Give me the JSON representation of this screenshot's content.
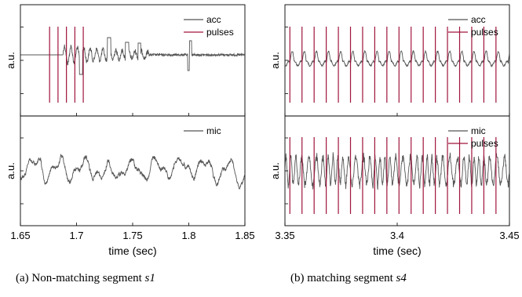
{
  "panels": [
    {
      "id": "a",
      "caption_prefix": "(a) Non-matching segment",
      "caption_segment": "s1",
      "xlabel": "time (sec)",
      "xlim": [
        1.65,
        1.85
      ],
      "xticks": [
        "1.65",
        "1.7",
        "1.75",
        "1.8",
        "1.85"
      ]
    },
    {
      "id": "b",
      "caption_prefix": "(b) matching segment",
      "caption_segment": "s4",
      "xlabel": "time (sec)",
      "xlim": [
        3.35,
        3.45
      ],
      "xticks": [
        "3.35",
        "3.4",
        "3.45"
      ]
    }
  ],
  "chart_data": [
    {
      "type": "line",
      "panel": "a-top",
      "xlim": [
        1.65,
        1.85
      ],
      "ylabel": "a.u.",
      "legend_position": "top-right",
      "series": [
        {
          "name": "acc",
          "color": "#555555",
          "style": "signal"
        },
        {
          "name": "pulses",
          "color": "#a0143c",
          "style": "pulses",
          "x": [
            1.676,
            1.6835,
            1.691,
            1.6985,
            1.706
          ]
        }
      ]
    },
    {
      "type": "line",
      "panel": "a-bottom",
      "xlim": [
        1.65,
        1.85
      ],
      "ylabel": "a.u.",
      "legend_position": "top-right",
      "series": [
        {
          "name": "mic",
          "color": "#555555",
          "style": "signal"
        }
      ]
    },
    {
      "type": "line",
      "panel": "b-top",
      "xlim": [
        3.35,
        3.45
      ],
      "ylabel": "a.u.",
      "legend_position": "top-right",
      "series": [
        {
          "name": "acc",
          "color": "#555555",
          "style": "signal"
        },
        {
          "name": "pulses",
          "color": "#a0143c",
          "style": "pulses",
          "x": [
            3.3522,
            3.3576,
            3.363,
            3.3684,
            3.3738,
            3.3792,
            3.3846,
            3.39,
            3.3954,
            3.4008,
            3.4062,
            3.4116,
            3.417,
            3.4224,
            3.4278,
            3.4332,
            3.4386,
            3.444
          ]
        }
      ]
    },
    {
      "type": "line",
      "panel": "b-bottom",
      "xlim": [
        3.35,
        3.45
      ],
      "ylabel": "a.u.",
      "legend_position": "top-right",
      "series": [
        {
          "name": "mic",
          "color": "#555555",
          "style": "signal"
        },
        {
          "name": "pulses",
          "color": "#a0143c",
          "style": "pulses",
          "x": [
            3.3522,
            3.3576,
            3.363,
            3.3684,
            3.3738,
            3.3792,
            3.3846,
            3.39,
            3.3954,
            3.4008,
            3.4062,
            3.4116,
            3.417,
            3.4224,
            3.4278,
            3.4332,
            3.4386,
            3.444
          ]
        }
      ]
    }
  ]
}
